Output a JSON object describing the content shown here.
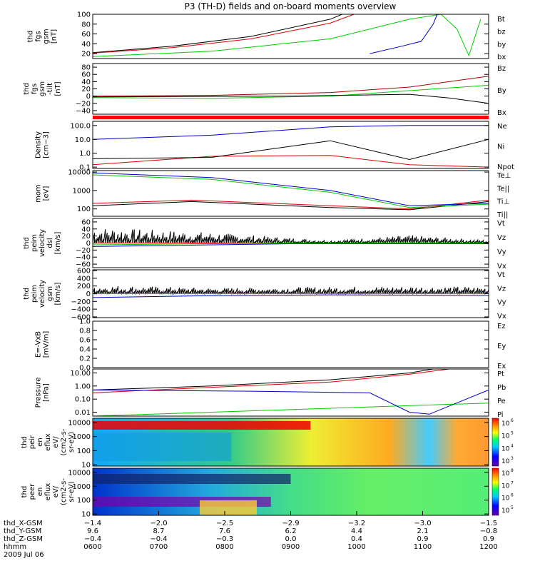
{
  "title": "P3 (TH-D) fields and on-board moments overview",
  "chart_data": [
    {
      "type": "line",
      "ylabel": [
        "thd",
        "fgs",
        "gsm",
        "[nT]"
      ],
      "ylim": [
        10,
        100
      ],
      "ticks": [
        "20",
        "40",
        "60",
        "80",
        "100"
      ],
      "tickvals": [
        20,
        40,
        60,
        80,
        100
      ],
      "legend": [
        "Bt",
        "bz",
        "by",
        "bx"
      ],
      "series": [
        {
          "name": "Bt",
          "values": [
            [
              0,
              22
            ],
            [
              0.2,
              35
            ],
            [
              0.4,
              55
            ],
            [
              0.6,
              90
            ],
            [
              0.63,
              100
            ]
          ]
        },
        {
          "name": "bz",
          "values": [
            [
              0,
              21
            ],
            [
              0.2,
              32
            ],
            [
              0.4,
              50
            ],
            [
              0.6,
              82
            ],
            [
              0.66,
              100
            ]
          ]
        },
        {
          "name": "by",
          "values": [
            [
              0,
              14
            ],
            [
              0.3,
              25
            ],
            [
              0.6,
              50
            ],
            [
              0.8,
              90
            ],
            [
              0.88,
              100
            ],
            [
              0.92,
              70
            ],
            [
              0.95,
              16
            ],
            [
              0.98,
              90
            ]
          ]
        },
        {
          "name": "bx",
          "values": [
            [
              0.7,
              20
            ],
            [
              0.78,
              35
            ],
            [
              0.83,
              45
            ],
            [
              0.86,
              80
            ],
            [
              0.87,
              100
            ]
          ]
        }
      ]
    },
    {
      "type": "line",
      "ylabel": [
        "thd",
        "fgs",
        "gsm",
        "-tilt",
        "[nT]"
      ],
      "ylim": [
        -50,
        90
      ],
      "ticks": [
        "−40",
        "−20",
        "0",
        "20",
        "40",
        "60",
        "80"
      ],
      "tickvals": [
        -40,
        -20,
        0,
        20,
        40,
        60,
        80
      ],
      "legend": [
        "Bz",
        "By",
        "Bx"
      ],
      "series": [
        {
          "name": "Bz",
          "values": [
            [
              0,
              0
            ],
            [
              0.3,
              2
            ],
            [
              0.6,
              10
            ],
            [
              0.8,
              25
            ],
            [
              1,
              55
            ]
          ]
        },
        {
          "name": "By",
          "values": [
            [
              0,
              -4
            ],
            [
              0.3,
              -6
            ],
            [
              0.6,
              0
            ],
            [
              0.8,
              15
            ],
            [
              1,
              30
            ]
          ]
        },
        {
          "name": "Bx",
          "values": [
            [
              0,
              -2
            ],
            [
              0.5,
              0
            ],
            [
              0.8,
              5
            ],
            [
              0.9,
              -5
            ],
            [
              1,
              -20
            ]
          ]
        }
      ]
    },
    {
      "type": "line",
      "ylabel": [
        "Density",
        "[cm−3]"
      ],
      "log": true,
      "ylim": [
        0.08,
        200
      ],
      "ticks": [
        "0.1",
        "1.0",
        "10.0",
        "100.0"
      ],
      "tickvals": [
        0.1,
        1,
        10,
        100
      ],
      "legend": [
        "Ne",
        "Ni",
        "Npot"
      ],
      "series": [
        {
          "name": "Ne",
          "values": [
            [
              0,
              0.15
            ],
            [
              0.3,
              0.6
            ],
            [
              0.6,
              0.7
            ],
            [
              0.8,
              0.15
            ],
            [
              1,
              0.1
            ]
          ]
        },
        {
          "name": "Ni",
          "values": [
            [
              0,
              0.4
            ],
            [
              0.3,
              0.5
            ],
            [
              0.6,
              8
            ],
            [
              0.8,
              0.35
            ],
            [
              1,
              10
            ]
          ]
        },
        {
          "name": "Npot",
          "values": [
            [
              0,
              10
            ],
            [
              0.3,
              20
            ],
            [
              0.6,
              80
            ],
            [
              0.8,
              100
            ],
            [
              1,
              100
            ]
          ]
        }
      ]
    },
    {
      "type": "line",
      "ylabel": [
        "mom",
        "[eV]"
      ],
      "log": true,
      "ylim": [
        40,
        12000
      ],
      "ticks": [
        "100",
        "1000",
        "10000"
      ],
      "tickvals": [
        100,
        1000,
        10000
      ],
      "legend": [
        "Te⊥",
        "Te||",
        "Ti⊥",
        "Ti||"
      ],
      "series": [
        {
          "name": "Te⊥",
          "values": [
            [
              0,
              200
            ],
            [
              0.25,
              300
            ],
            [
              0.6,
              150
            ],
            [
              0.8,
              100
            ],
            [
              1,
              300
            ]
          ]
        },
        {
          "name": "Te||",
          "values": [
            [
              0,
              150
            ],
            [
              0.25,
              250
            ],
            [
              0.6,
              120
            ],
            [
              0.8,
              90
            ],
            [
              1,
              250
            ]
          ]
        },
        {
          "name": "Ti⊥",
          "values": [
            [
              0,
              9000
            ],
            [
              0.3,
              5000
            ],
            [
              0.6,
              1000
            ],
            [
              0.8,
              150
            ],
            [
              1,
              200
            ]
          ]
        },
        {
          "name": "Ti||",
          "values": [
            [
              0,
              7000
            ],
            [
              0.3,
              4000
            ],
            [
              0.6,
              800
            ],
            [
              0.8,
              120
            ],
            [
              1,
              180
            ]
          ]
        }
      ]
    },
    {
      "type": "line",
      "ylabel": [
        "thd",
        "peim",
        "velocity",
        "dsl",
        "[km/s]"
      ],
      "ylim": [
        -70,
        70
      ],
      "ticks": [
        "−60",
        "−40",
        "−20",
        "0",
        "20",
        "40",
        "60"
      ],
      "tickvals": [
        -60,
        -40,
        -20,
        0,
        20,
        40,
        60
      ],
      "legend": [
        "Vt",
        "Vz",
        "Vy",
        "Vx"
      ],
      "series": [
        {
          "name": "Vt",
          "values": [
            [
              0,
              30
            ],
            [
              0.3,
              20
            ],
            [
              0.6,
              5
            ],
            [
              0.8,
              15
            ],
            [
              1,
              5
            ]
          ]
        },
        {
          "name": "Vz",
          "values": [
            [
              0,
              0
            ],
            [
              0.5,
              0
            ],
            [
              1,
              0
            ]
          ]
        },
        {
          "name": "Vy",
          "values": [
            [
              0,
              -5
            ],
            [
              0.5,
              0
            ],
            [
              1,
              0
            ]
          ]
        },
        {
          "name": "Vx",
          "values": [
            [
              0,
              -10
            ],
            [
              0.5,
              -2
            ],
            [
              1,
              -2
            ]
          ]
        }
      ]
    },
    {
      "type": "line",
      "ylabel": [
        "thd",
        "peim",
        "velocity",
        "gsm",
        "[km/s]"
      ],
      "ylim": [
        -620,
        620
      ],
      "ticks": [
        "−600",
        "−400",
        "−200",
        "0",
        "200",
        "400",
        "600"
      ],
      "tickvals": [
        -600,
        -400,
        -200,
        0,
        200,
        400,
        600
      ],
      "legend": [
        "Vt",
        "Vz",
        "Vy",
        "Vx"
      ],
      "series": [
        {
          "name": "Vt",
          "values": [
            [
              0,
              150
            ],
            [
              0.3,
              100
            ],
            [
              0.6,
              120
            ],
            [
              0.8,
              130
            ],
            [
              1,
              120
            ]
          ]
        },
        {
          "name": "Vz",
          "values": [
            [
              0,
              0
            ],
            [
              1,
              0
            ]
          ]
        },
        {
          "name": "Vy",
          "values": [
            [
              0,
              0
            ],
            [
              1,
              0
            ]
          ]
        },
        {
          "name": "Vx",
          "values": [
            [
              0,
              -100
            ],
            [
              0.3,
              -50
            ],
            [
              0.6,
              -30
            ],
            [
              1,
              -40
            ]
          ]
        }
      ]
    },
    {
      "type": "line",
      "ylabel": [
        "E=-VxB",
        "[mV/m]"
      ],
      "ylim": [
        0,
        1
      ],
      "ticks": [
        "0.0",
        "0.2",
        "0.4",
        "0.6",
        "0.8",
        "1.0"
      ],
      "tickvals": [
        0,
        0.2,
        0.4,
        0.6,
        0.8,
        1.0
      ],
      "legend": [
        "Ez",
        "Ey",
        "Ex"
      ],
      "series": []
    },
    {
      "type": "line",
      "ylabel": [
        "Pressure",
        "[nPa]"
      ],
      "log": true,
      "ylim": [
        0.005,
        20
      ],
      "ticks": [
        "0.01",
        "0.10",
        "1.00",
        "10.00"
      ],
      "tickvals": [
        0.01,
        0.1,
        1,
        10
      ],
      "legend": [
        "Pt",
        "Pb",
        "Pe",
        "Pi"
      ],
      "series": [
        {
          "name": "Pt",
          "values": [
            [
              0,
              0.5
            ],
            [
              0.3,
              1
            ],
            [
              0.6,
              3
            ],
            [
              0.8,
              10
            ],
            [
              0.86,
              20
            ]
          ]
        },
        {
          "name": "Pb",
          "values": [
            [
              0,
              0.3
            ],
            [
              0.3,
              0.8
            ],
            [
              0.6,
              2
            ],
            [
              0.8,
              8
            ],
            [
              0.9,
              20
            ]
          ]
        },
        {
          "name": "Pe",
          "values": [
            [
              0,
              0.005
            ],
            [
              0.3,
              0.01
            ],
            [
              0.6,
              0.02
            ],
            [
              1,
              0.05
            ]
          ]
        },
        {
          "name": "Pi",
          "values": [
            [
              0,
              0.5
            ],
            [
              0.4,
              0.4
            ],
            [
              0.7,
              0.3
            ],
            [
              0.8,
              0.01
            ],
            [
              0.85,
              0.007
            ],
            [
              1,
              0.5
            ]
          ]
        }
      ]
    },
    {
      "type": "heatmap",
      "ylabel": [
        "thd",
        "peir",
        "en",
        "eflux",
        "eV/",
        "(cm2-s-",
        "sr-eV)"
      ],
      "log": true,
      "ylim": [
        8,
        20000
      ],
      "ticks": [
        "10",
        "100",
        "1000",
        "10000"
      ],
      "tickvals": [
        10,
        100,
        1000,
        10000
      ],
      "colorbar": [
        "10",
        "10",
        "10",
        "10"
      ],
      "colorbar_exp": [
        "3",
        "4",
        "5",
        "6"
      ]
    },
    {
      "type": "heatmap",
      "ylabel": [
        "thd",
        "peer",
        "en",
        "eflux",
        "eV/",
        "(cm2-s-",
        "sr-eV)"
      ],
      "log": true,
      "ylim": [
        8,
        20000
      ],
      "ticks": [
        "10",
        "100",
        "1000",
        "10000"
      ],
      "tickvals": [
        10,
        100,
        1000,
        10000
      ],
      "colorbar": [
        "10",
        "10",
        "10",
        "10"
      ],
      "colorbar_exp": [
        "5",
        "6",
        "7",
        "8"
      ]
    }
  ],
  "xaxis": {
    "rows": [
      {
        "label": "thd_X-GSM",
        "values": [
          "−1.4",
          "−2.0",
          "−2.5",
          "−2.9",
          "−3.2",
          "−3.0",
          "−1.5"
        ]
      },
      {
        "label": "thd_Y-GSM",
        "values": [
          "9.6",
          "8.7",
          "7.6",
          "6.2",
          "4.4",
          "2.1",
          "−0.8"
        ]
      },
      {
        "label": "thd_Z-GSM",
        "values": [
          "−0.4",
          "−0.4",
          "−0.3",
          "0.0",
          "0.4",
          "0.9",
          "0.9"
        ]
      },
      {
        "label": "hhmm",
        "values": [
          "0600",
          "0700",
          "0800",
          "0900",
          "1000",
          "1100",
          "1200"
        ]
      }
    ],
    "date": "2009 Jul 06"
  }
}
